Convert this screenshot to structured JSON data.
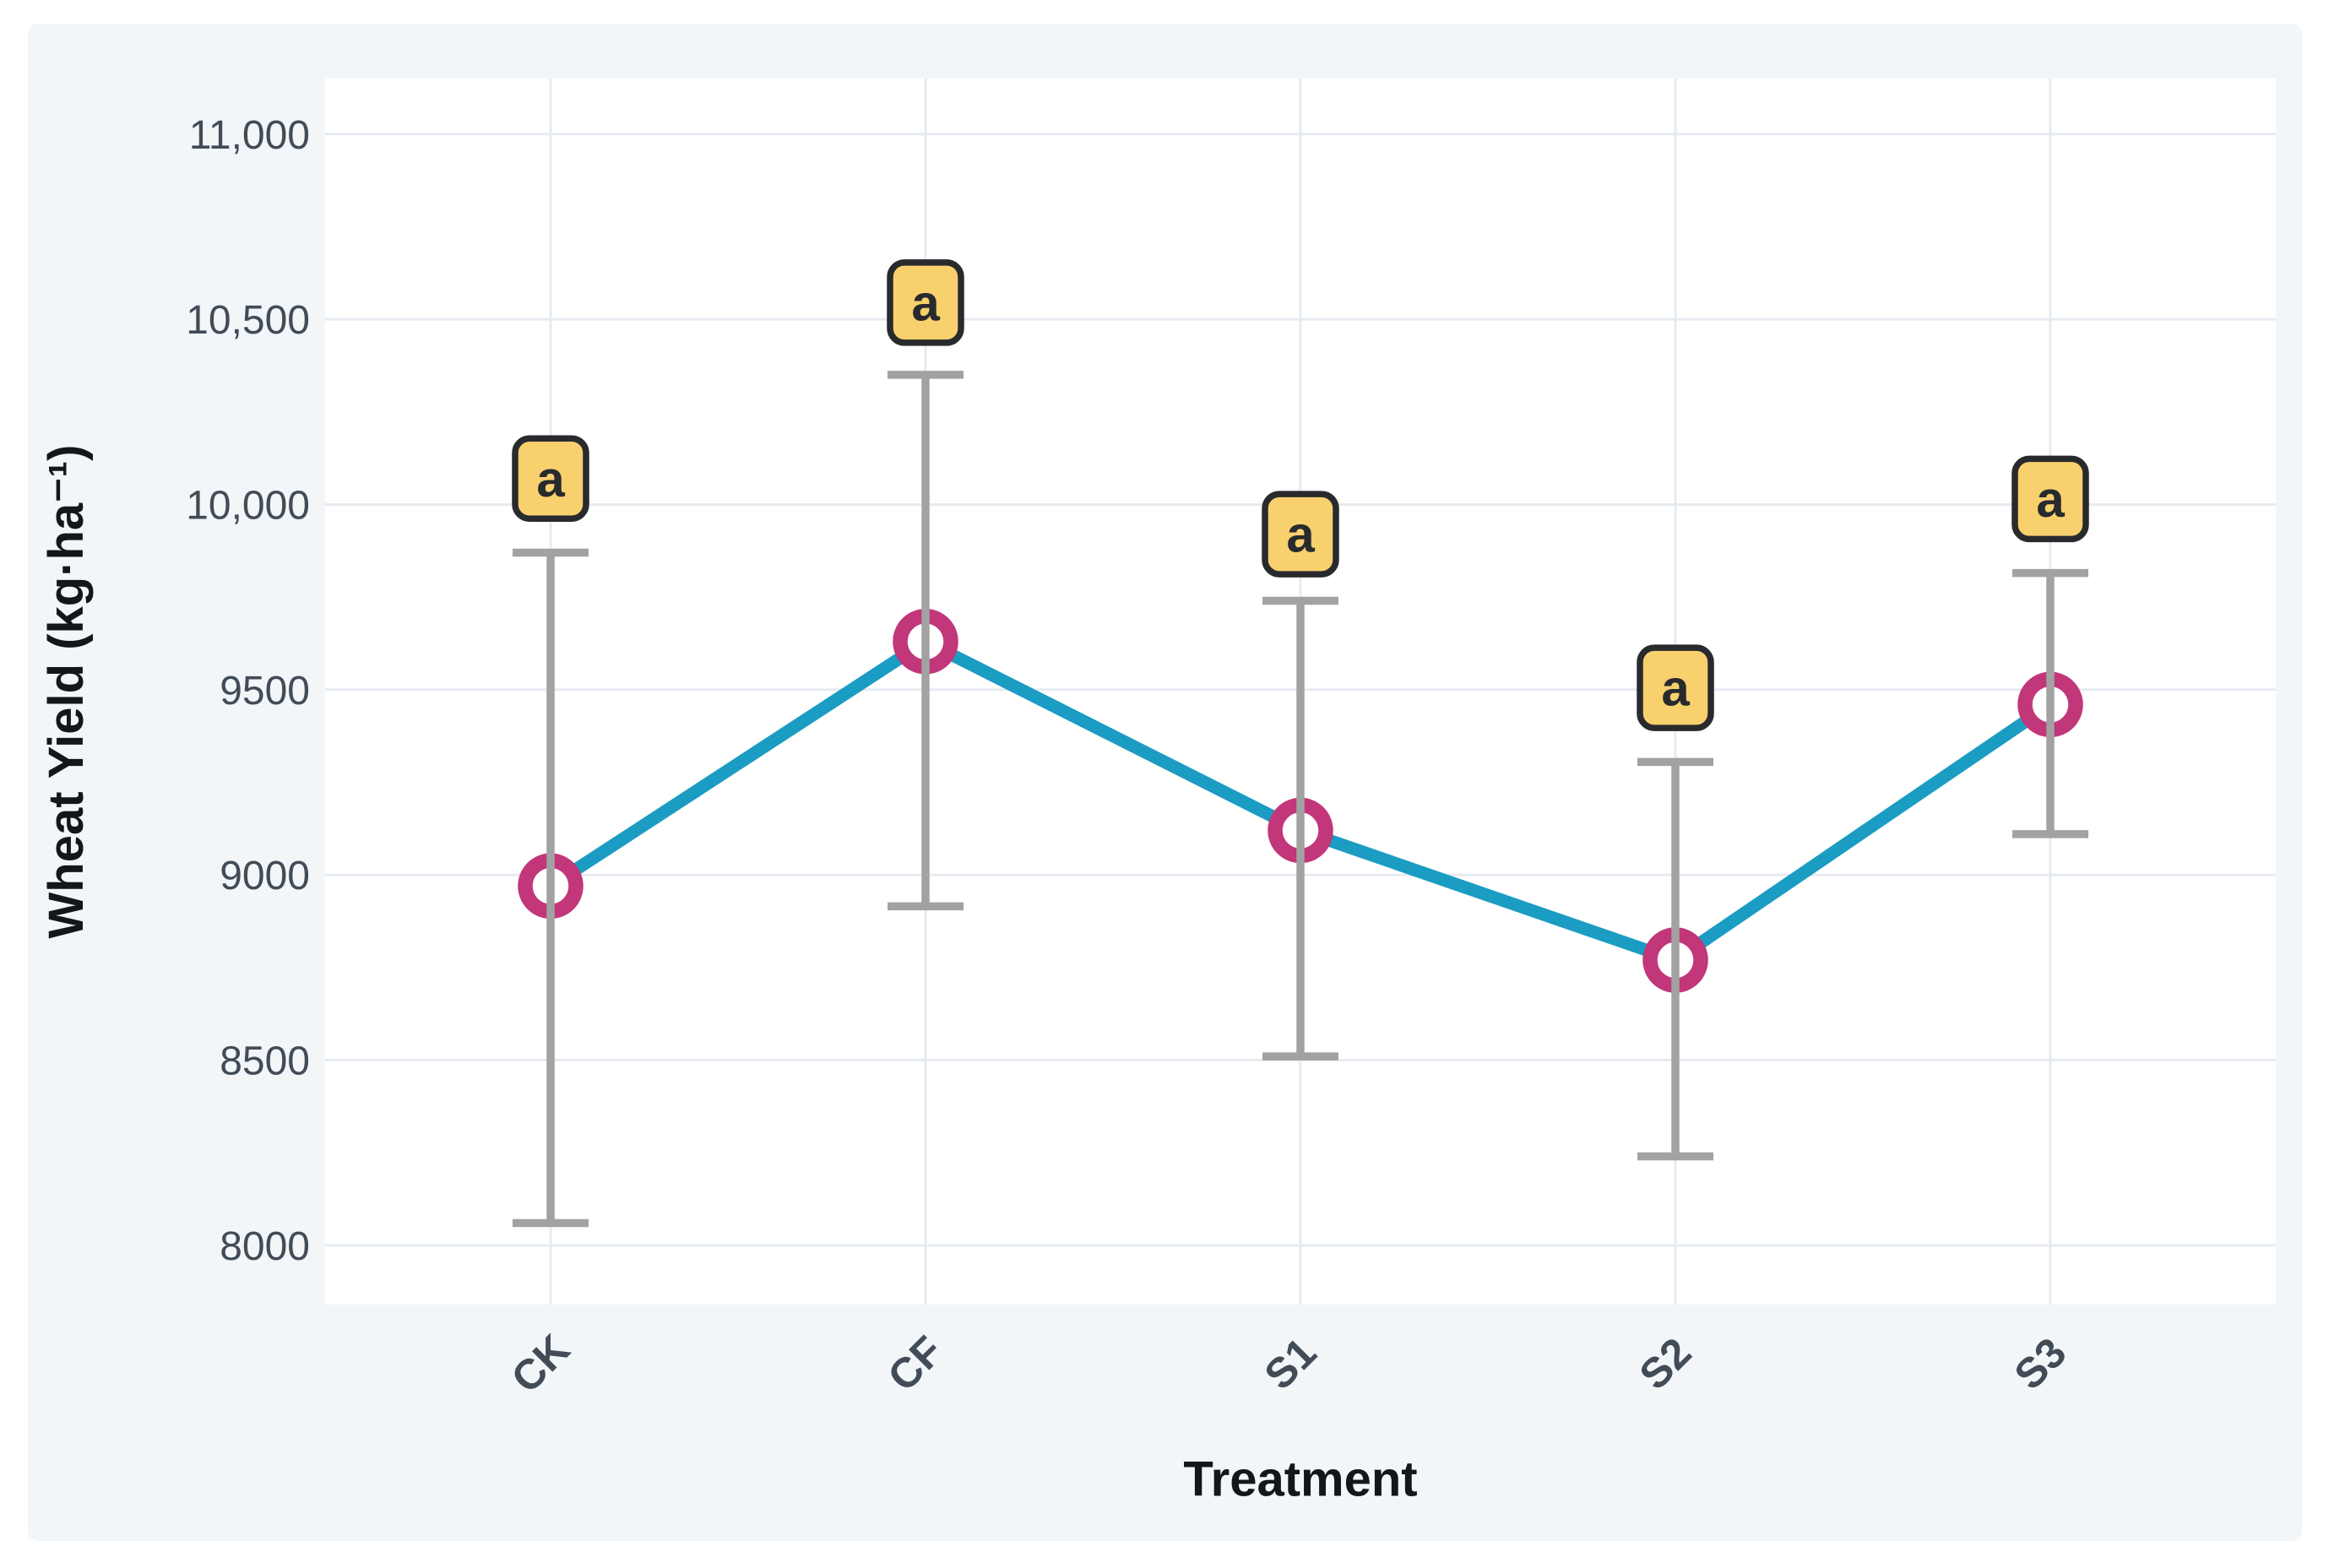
{
  "chart_data": {
    "type": "line",
    "title": "",
    "xlabel": "Treatment",
    "ylabel": "Wheat Yield (kg·ha⁻¹)",
    "categories": [
      "CK",
      "CF",
      "S1",
      "S2",
      "S3"
    ],
    "series": [
      {
        "name": "Wheat Yield",
        "values": [
          8970,
          9630,
          9120,
          8770,
          9460
        ],
        "error_upper": [
          9870,
          10350,
          9740,
          9305,
          9815
        ],
        "error_lower": [
          8060,
          8915,
          8510,
          8240,
          9110
        ]
      }
    ],
    "point_labels": [
      "a",
      "a",
      "a",
      "a",
      "a"
    ],
    "point_label_y": [
      10070,
      10545,
      9920,
      9505,
      10015
    ],
    "y_ticks": [
      8000,
      8500,
      9000,
      9500,
      10000,
      10500,
      11000
    ],
    "y_tick_labels": [
      "8000",
      "8500",
      "9000",
      "9500",
      "10,000",
      "10,500",
      "11,000"
    ],
    "ylim": [
      7840,
      11150
    ],
    "grid": true,
    "legend": false,
    "x_tick_angle": -45,
    "colors": {
      "line": "#1b9cc2",
      "marker_ring": "#c2367a",
      "marker_fill": "#ffffff",
      "error_bar": "#a2a2a2",
      "label_box_fill": "#f8d06e",
      "label_box_border": "#282a2d",
      "grid_line": "#e6ebf1",
      "panel_bg": "#f2f6f9",
      "plot_bg": "#ffffff",
      "tick_text": "#414c57",
      "title_text": "#141619"
    }
  }
}
